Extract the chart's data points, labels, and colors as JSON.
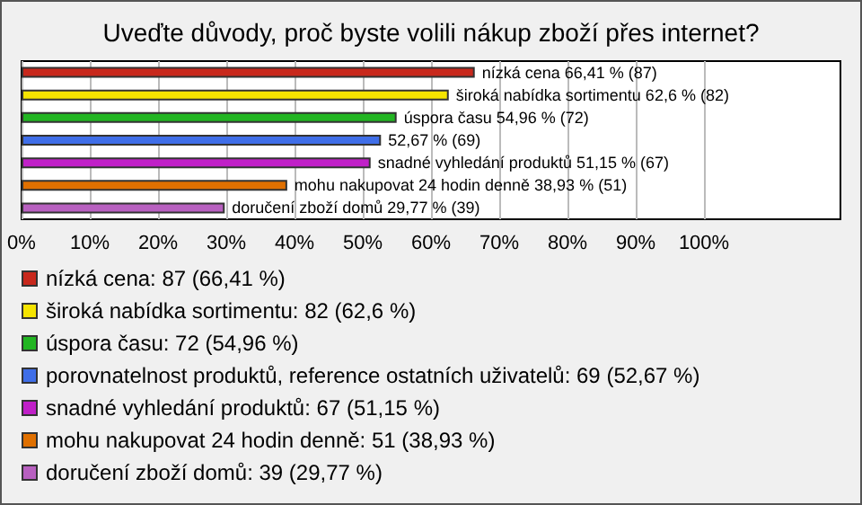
{
  "chart_data": {
    "type": "bar",
    "orientation": "horizontal",
    "title": "Uveďte důvody, proč byste volili nákup zboží přes internet?",
    "categories": [
      null,
      null,
      null,
      null,
      null,
      null,
      null
    ],
    "series": [
      {
        "name": "nízká cena: 87 (66,41 %)",
        "color": "#c8281c",
        "values": [
          66.41,
          null,
          null,
          null,
          null,
          null,
          null
        ],
        "value_labels": [
          "nízká cena 66,41 % (87)",
          null,
          null,
          null,
          null,
          null,
          null
        ]
      },
      {
        "name": "široká nabídka sortimentu: 82 (62,6 %)",
        "color": "#f5e400",
        "values": [
          null,
          62.6,
          null,
          null,
          null,
          null,
          null
        ],
        "value_labels": [
          null,
          "široká nabídka sortimentu 62,6 % (82)",
          null,
          null,
          null,
          null,
          null
        ]
      },
      {
        "name": "úspora času: 72 (54,96 %)",
        "color": "#22b522",
        "values": [
          null,
          null,
          54.96,
          null,
          null,
          null,
          null
        ],
        "value_labels": [
          null,
          null,
          "úspora času 54,96 % (72)",
          null,
          null,
          null,
          null
        ]
      },
      {
        "name": "porovnatelnost produktů, reference ostatních uživatelů: 69 (52,67 %)",
        "color": "#3f6ee8",
        "values": [
          null,
          null,
          null,
          52.67,
          null,
          null,
          null
        ],
        "value_labels": [
          null,
          null,
          null,
          "52,67 % (69)",
          null,
          null,
          null
        ]
      },
      {
        "name": "snadné vyhledání produktů: 67 (51,15 %)",
        "color": "#c020c8",
        "values": [
          null,
          null,
          null,
          null,
          51.15,
          null,
          null
        ],
        "value_labels": [
          null,
          null,
          null,
          null,
          "snadné vyhledání produktů 51,15 % (67)",
          null,
          null
        ]
      },
      {
        "name": "mohu nakupovat 24 hodin denně: 51 (38,93 %)",
        "color": "#e07000",
        "values": [
          null,
          null,
          null,
          null,
          null,
          38.93,
          null
        ],
        "value_labels": [
          null,
          null,
          null,
          null,
          null,
          "mohu nakupovat 24 hodin denně 38,93 % (51)",
          null
        ]
      },
      {
        "name": "doručení zboží domů: 39 (29,77 %)",
        "color": "#b860c0",
        "values": [
          null,
          null,
          null,
          null,
          null,
          null,
          29.77
        ],
        "value_labels": [
          null,
          null,
          null,
          null,
          null,
          null,
          "doručení zboží domů 29,77 % (39)"
        ]
      }
    ],
    "xlim": [
      0,
      120
    ],
    "xticks": [
      {
        "value": 0,
        "label": "0%"
      },
      {
        "value": 10,
        "label": "10%"
      },
      {
        "value": 20,
        "label": "20%"
      },
      {
        "value": 30,
        "label": "30%"
      },
      {
        "value": 40,
        "label": "40%"
      },
      {
        "value": 50,
        "label": "50%"
      },
      {
        "value": 60,
        "label": "60%"
      },
      {
        "value": 70,
        "label": "70%"
      },
      {
        "value": 80,
        "label": "80%"
      },
      {
        "value": 90,
        "label": "90%"
      },
      {
        "value": 100,
        "label": "100%"
      }
    ],
    "grid": "x",
    "legend": "bottom left"
  }
}
